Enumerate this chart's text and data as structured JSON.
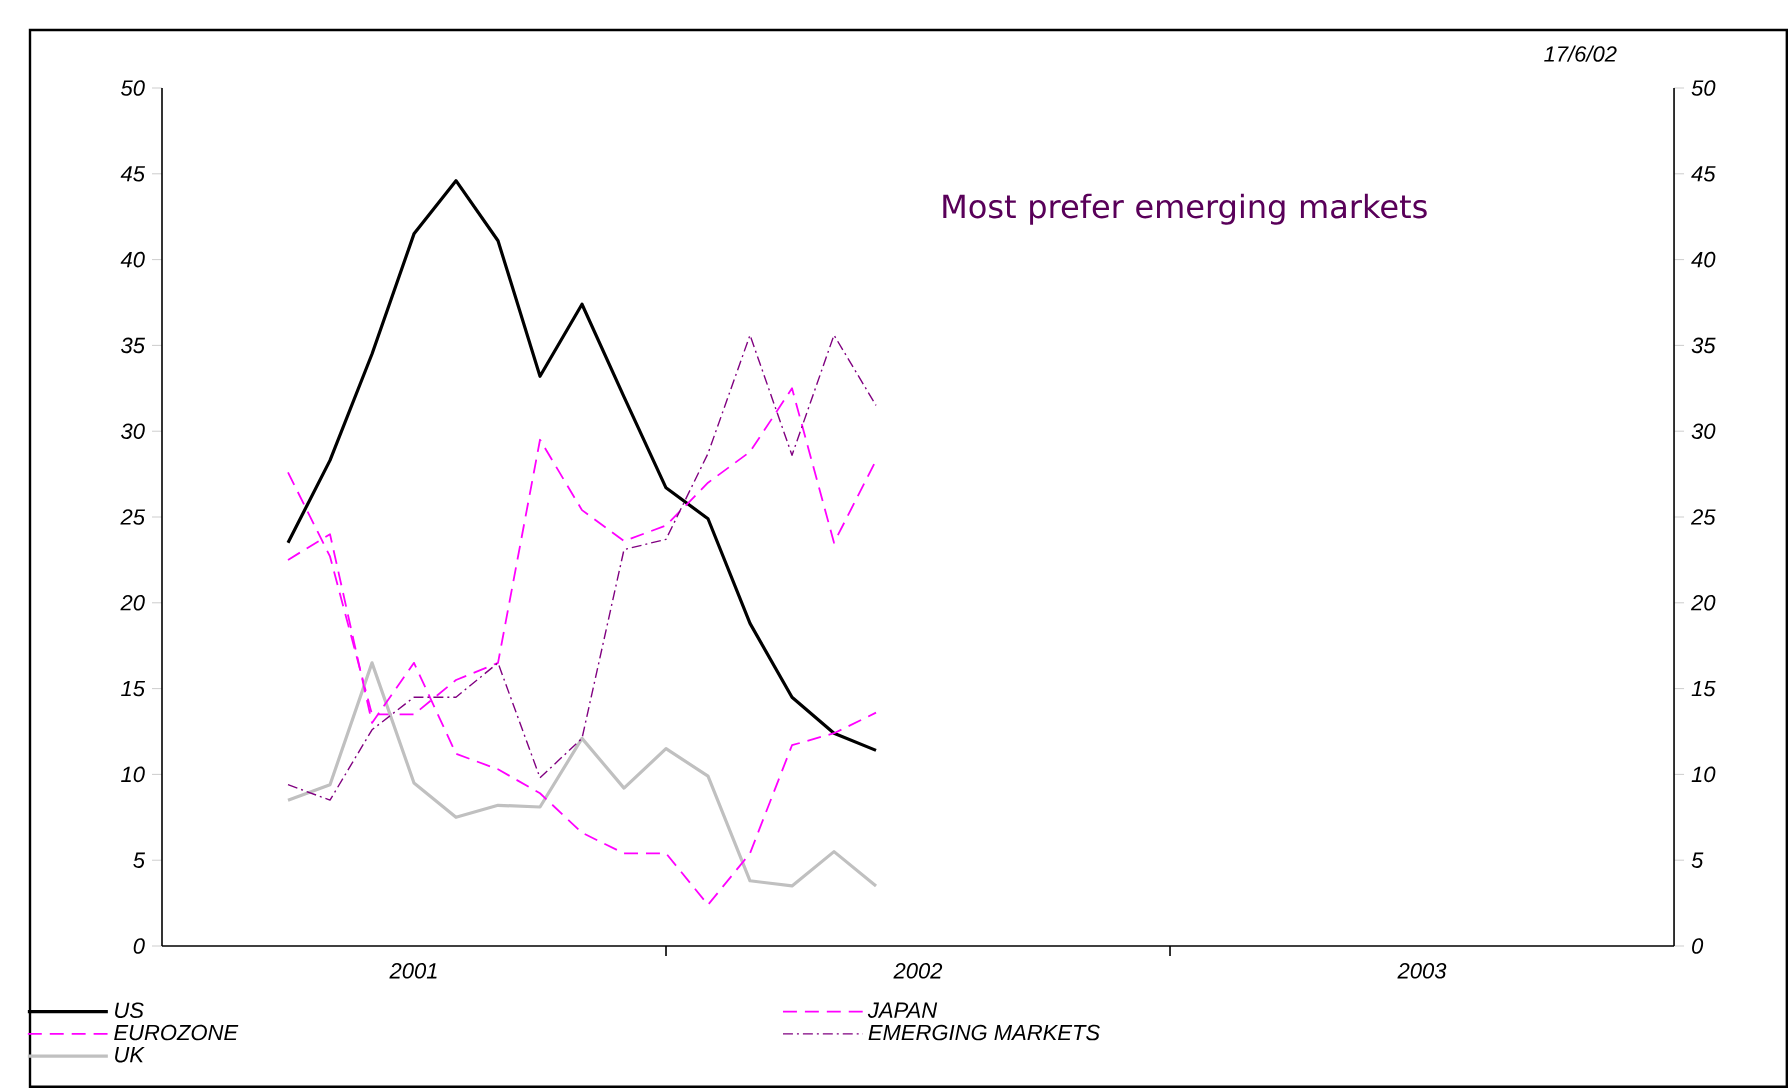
{
  "chart_data": {
    "type": "line",
    "x": [
      "2001-04",
      "2001-05",
      "2001-06",
      "2001-07",
      "2001-08",
      "2001-09",
      "2001-10",
      "2001-11",
      "2001-12",
      "2002-01",
      "2002-02",
      "2002-03",
      "2002-04",
      "2002-05",
      "2002-06"
    ],
    "series": [
      {
        "name": "US",
        "color": "#000000",
        "line_style": "solid",
        "values": [
          23.5,
          28.3,
          34.5,
          41.5,
          44.6,
          41.1,
          33.2,
          37.4,
          32,
          26.7,
          24.9,
          18.8,
          14.5,
          12.4,
          11.4
        ]
      },
      {
        "name": "EUROZONE",
        "color": "#ff00ff",
        "line_style": "dashed",
        "values": [
          27.6,
          22.7,
          13.5,
          13.5,
          15.5,
          16.5,
          29.5,
          25.4,
          23.6,
          24.5,
          27,
          28.8,
          32.5,
          23.5,
          28.3
        ]
      },
      {
        "name": "UK",
        "color": "#c0c0c0",
        "line_style": "solid",
        "values": [
          8.5,
          9.4,
          16.5,
          9.5,
          7.5,
          8.2,
          8.1,
          12.1,
          9.2,
          11.5,
          9.9,
          3.8,
          3.5,
          5.5,
          3.5
        ]
      },
      {
        "name": "JAPAN",
        "color": "#ff00ff",
        "line_style": "dashed",
        "values": [
          22.5,
          24,
          13,
          16.5,
          11.2,
          10.3,
          8.9,
          6.6,
          5.4,
          5.4,
          2.4,
          5.4,
          11.7,
          12.4,
          13.6
        ]
      },
      {
        "name": "EMERGING MARKETS",
        "color": "#800080",
        "line_style": "dashdot",
        "values": [
          9.4,
          8.5,
          12.6,
          14.5,
          14.5,
          16.5,
          9.8,
          12.1,
          23.1,
          23.7,
          28.7,
          35.6,
          28.6,
          35.6,
          31.5
        ]
      }
    ],
    "xlim": [
      "2001",
      "2004"
    ],
    "xticks": [
      {
        "value": "2002",
        "label": null
      },
      {
        "value": "2003",
        "label": null
      },
      {
        "value": "2001-07",
        "label": "2001"
      },
      {
        "value": "2002-07",
        "label": "2002"
      },
      {
        "value": "2003-07",
        "label": "2003"
      }
    ],
    "ylim": [
      0,
      50
    ],
    "yticks": [
      0,
      5,
      10,
      15,
      20,
      25,
      30,
      35,
      40,
      45,
      50
    ],
    "y2lim": [
      0,
      50
    ],
    "y2ticks": [
      0,
      5,
      10,
      15,
      20,
      25,
      30,
      35,
      40,
      45,
      50
    ],
    "grid": false,
    "legend": "bottom",
    "marker": "none",
    "annotations": [
      "17/6/02",
      "Most prefer emerging markets"
    ]
  }
}
